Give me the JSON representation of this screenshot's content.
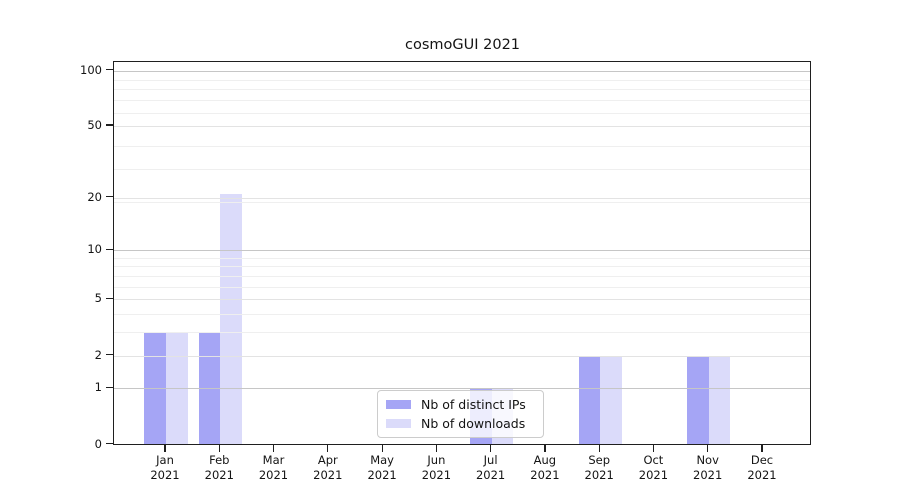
{
  "chart_data": {
    "type": "bar",
    "title": "cosmoGUI 2021",
    "year_label": "2021",
    "categories": [
      "Jan",
      "Feb",
      "Mar",
      "Apr",
      "May",
      "Jun",
      "Jul",
      "Aug",
      "Sep",
      "Oct",
      "Nov",
      "Dec"
    ],
    "series": [
      {
        "name": "Nb of distinct IPs",
        "color": "#a5a5f5",
        "values": [
          3,
          3,
          0,
          0,
          0,
          0,
          1,
          0,
          2,
          0,
          2,
          0
        ]
      },
      {
        "name": "Nb of downloads",
        "color": "#dbdbfa",
        "values": [
          3,
          21,
          0,
          0,
          0,
          0,
          1,
          0,
          2,
          0,
          2,
          0
        ]
      }
    ],
    "xlabel": "",
    "ylabel": "",
    "y_scale": "log10(1+x)",
    "y_ticks": [
      0,
      1,
      2,
      5,
      10,
      20,
      50,
      100
    ],
    "y_major_ticks": [
      1,
      10,
      100
    ],
    "minor_grid_values": [
      3,
      4,
      6,
      7,
      8,
      9,
      19,
      29,
      39,
      59,
      69,
      79,
      89
    ],
    "ylim": [
      0,
      110
    ],
    "grid": "horizontal",
    "legend_position": "inside-bottom-center",
    "colors": {
      "grid_major": "#c6c6c6",
      "grid_mid": "#e3e3e3",
      "grid_minor": "#efefef",
      "spine": "#1f1f1f",
      "text": "#141414",
      "legend_border": "#cccccc",
      "background": "#ffffff"
    }
  }
}
